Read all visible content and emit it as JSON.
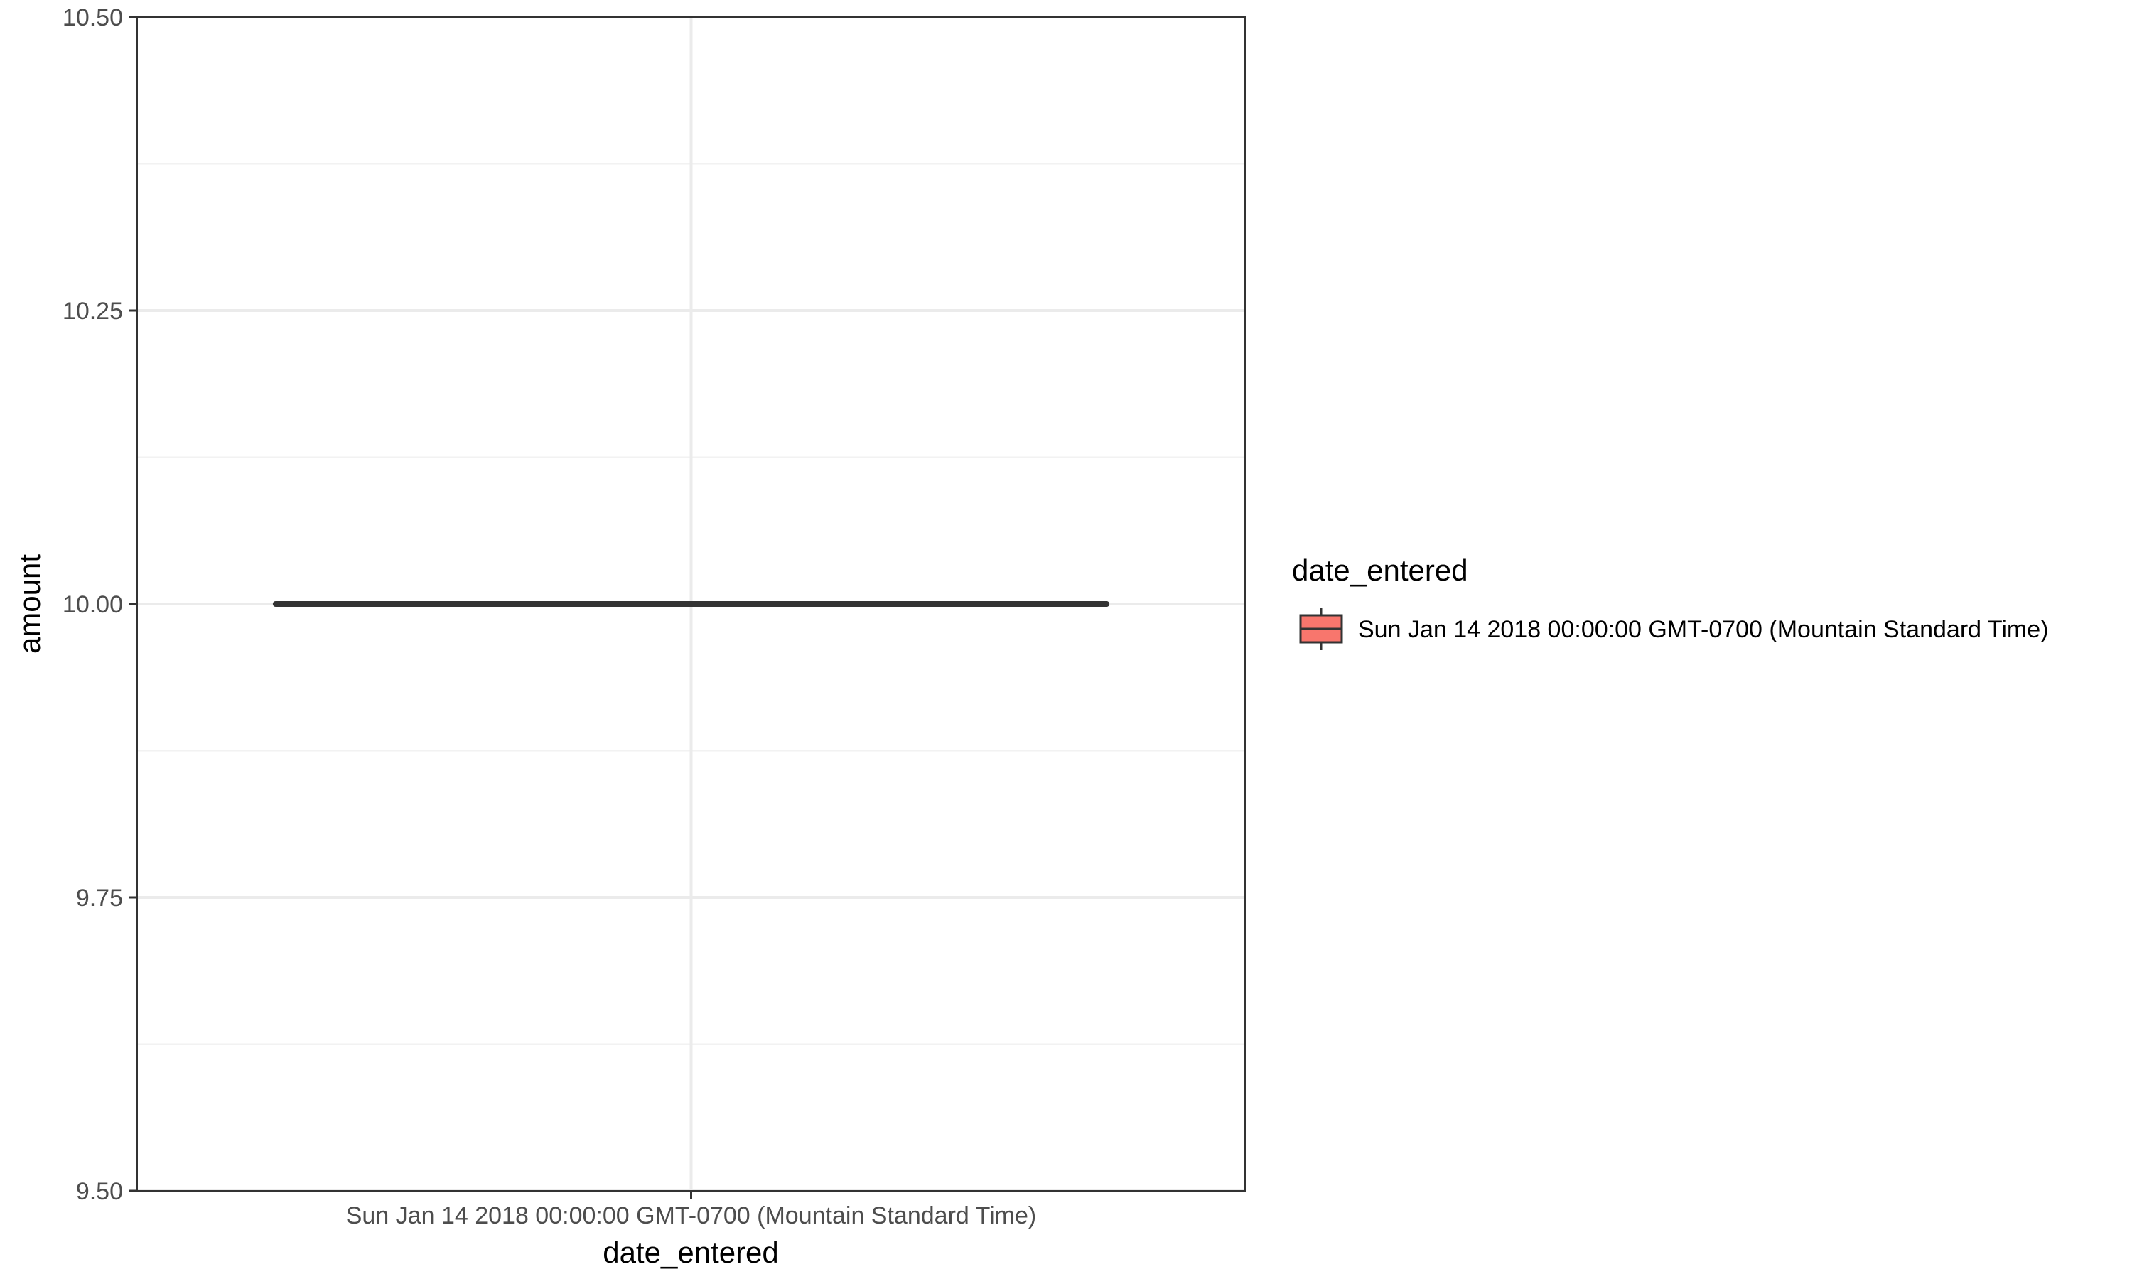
{
  "chart_data": {
    "type": "boxplot",
    "xlabel": "date_entered",
    "ylabel": "amount",
    "categories": [
      "Sun Jan 14 2018 00:00:00 GMT-0700 (Mountain Standard Time)"
    ],
    "boxes": [
      {
        "category": "Sun Jan 14 2018 00:00:00 GMT-0700 (Mountain Standard Time)",
        "min": 10.0,
        "q1": 10.0,
        "median": 10.0,
        "q3": 10.0,
        "max": 10.0
      }
    ],
    "ylim": [
      9.5,
      10.5
    ],
    "y_ticks": [
      9.5,
      9.75,
      10.0,
      10.25,
      10.5
    ],
    "y_tick_labels": [
      "9.50",
      "9.75",
      "10.00",
      "10.25",
      "10.50"
    ],
    "grid": true,
    "legend": {
      "title": "date_entered",
      "placement": "right",
      "entries": [
        {
          "label": "Sun Jan 14 2018 00:00:00 GMT-0700 (Mountain Standard Time)",
          "color": "#f8766d"
        }
      ]
    },
    "colors": {
      "panel_border": "#333333",
      "grid_major": "#ebebeb",
      "grid_minor": "#f2f2f2",
      "box_line": "#333333",
      "box_fill": "#f8766d"
    }
  }
}
